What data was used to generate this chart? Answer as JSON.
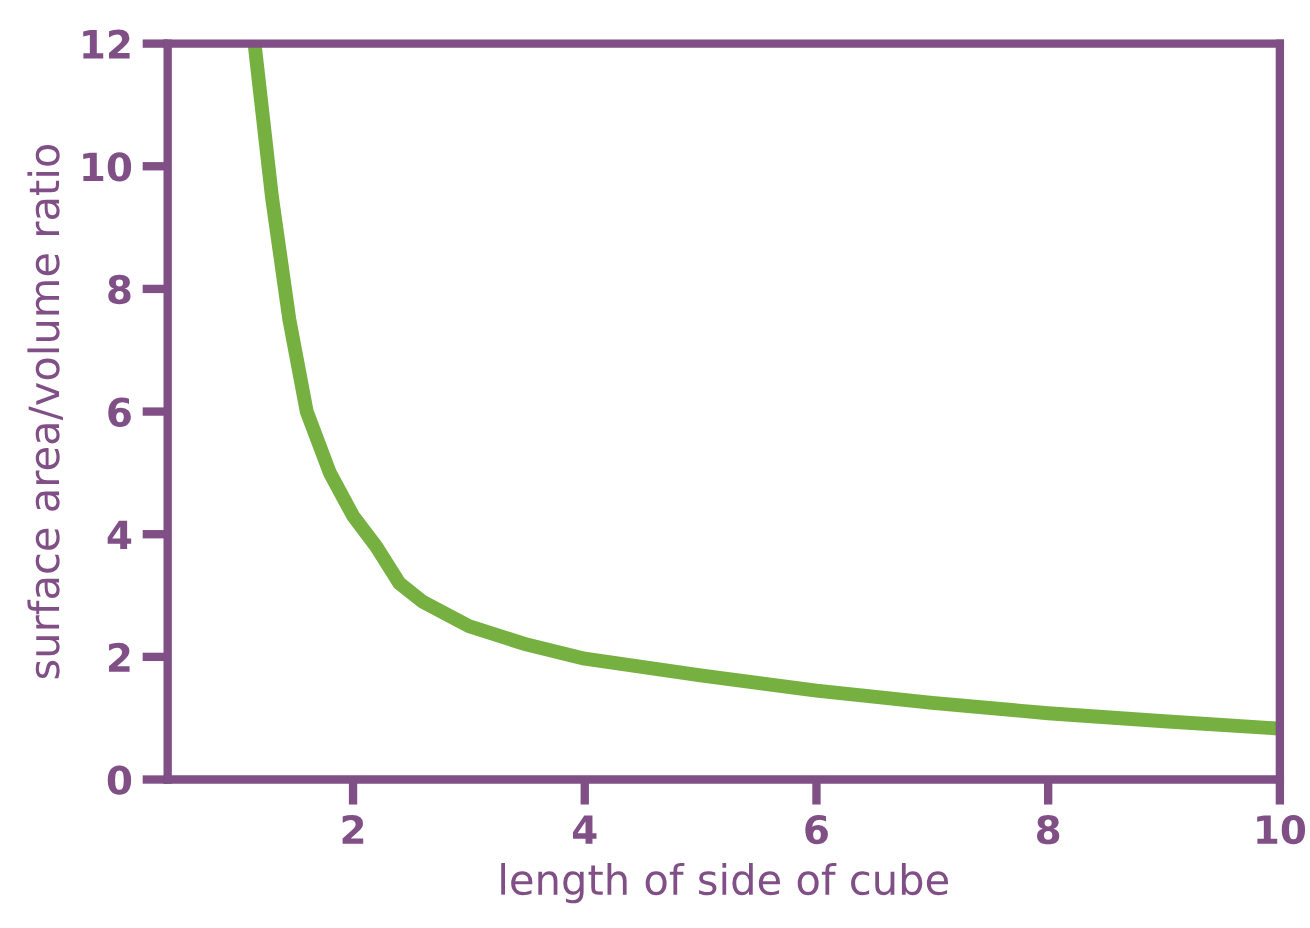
{
  "chart_data": {
    "type": "line",
    "xlabel": "length of side of cube",
    "ylabel": "surface area/volume ratio",
    "x": [
      1.15,
      1.3,
      1.45,
      1.6,
      1.8,
      2.0,
      2.2,
      2.4,
      2.6,
      3.0,
      3.5,
      4,
      5,
      6,
      7,
      8,
      9,
      10
    ],
    "series": [
      {
        "color": "#76b041",
        "values": [
          12,
          9.5,
          7.5,
          6.0,
          5.0,
          4.3,
          3.8,
          3.2,
          2.9,
          2.5,
          2.2,
          1.97,
          1.7,
          1.45,
          1.25,
          1.08,
          0.95,
          0.83
        ]
      }
    ],
    "xlim": [
      0.4,
      10
    ],
    "ylim": [
      0,
      12
    ],
    "xticks": [
      2,
      4,
      6,
      8,
      10
    ],
    "yticks": [
      0,
      2,
      4,
      6,
      8,
      10,
      12
    ],
    "grid": false,
    "marker": "none",
    "line_style": "solid"
  }
}
